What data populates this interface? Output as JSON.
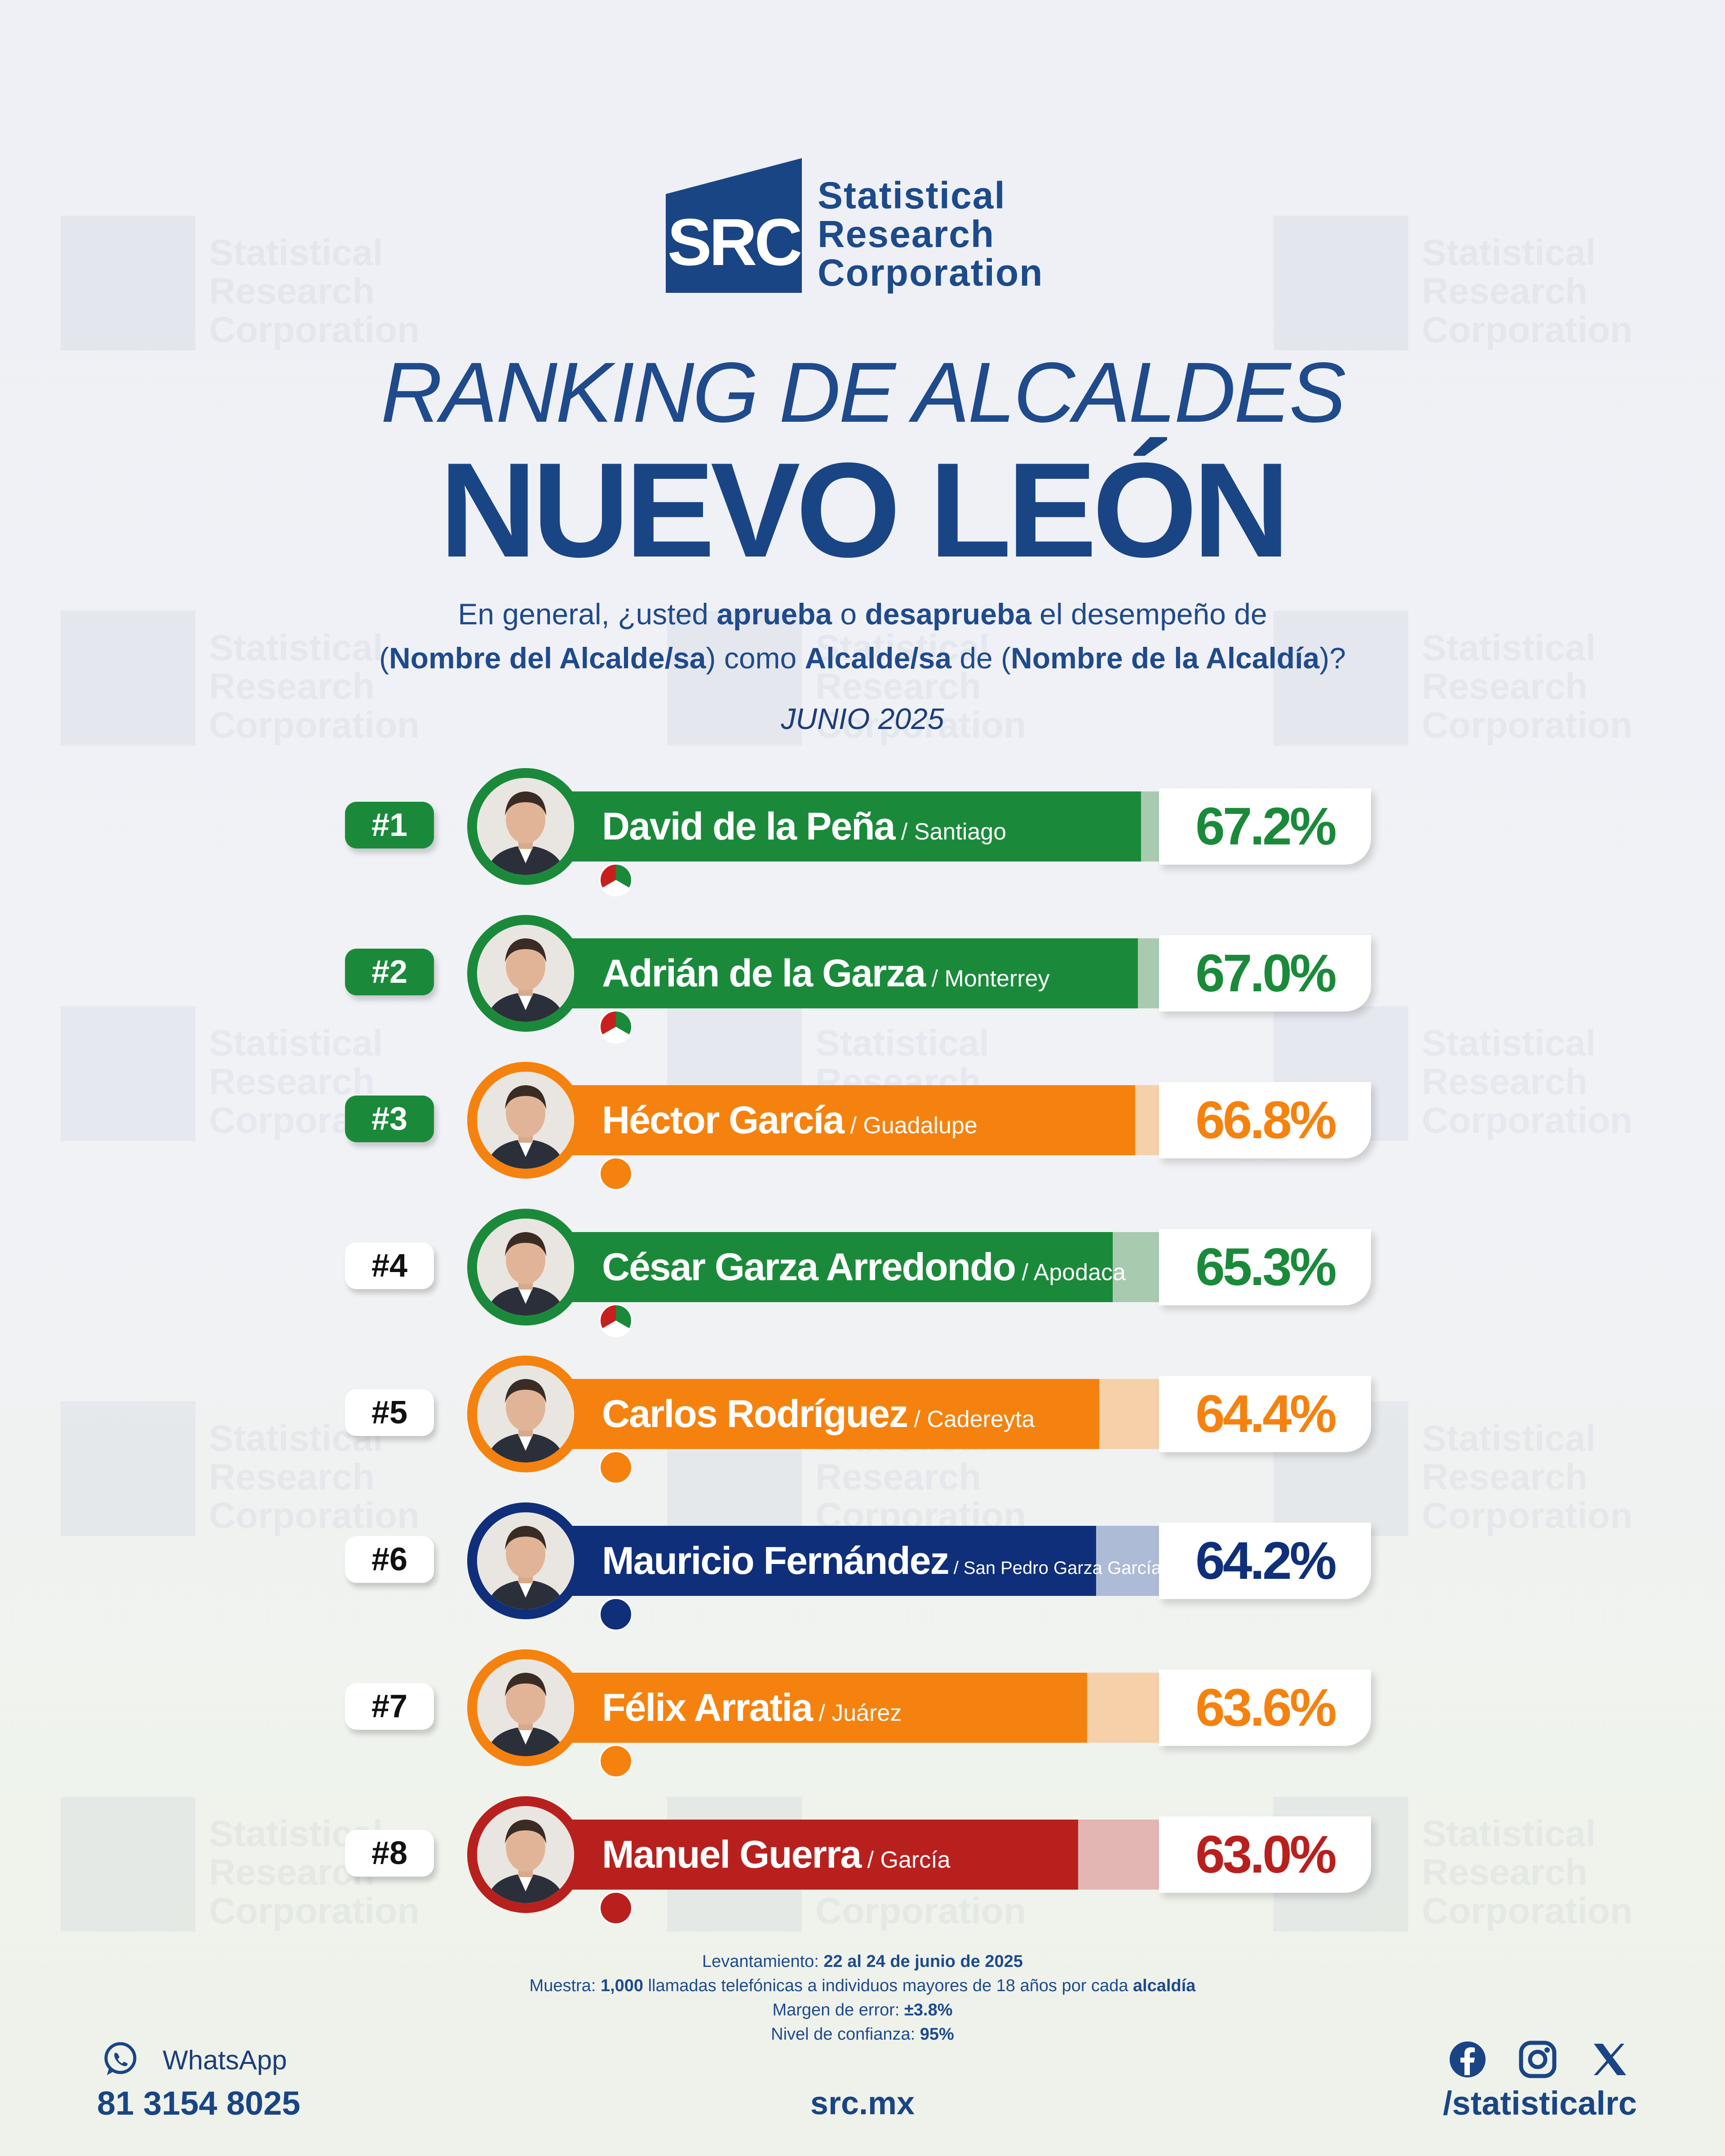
{
  "logo": {
    "mark": "SRC",
    "line1": "Statistical",
    "line2": "Research",
    "line3": "Corporation"
  },
  "title_line1": "RANKING DE ALCALDES",
  "title_line2": "NUEVO LEÓN",
  "question": {
    "p1": "En general, ¿usted ",
    "b1": "aprueba",
    "p2": " o ",
    "b2": "desaprueba",
    "p3": " el desempeño de",
    "p4": "(",
    "b3": "Nombre del Alcalde/sa",
    "p5": ") como ",
    "b4": "Alcalde/sa",
    "p6": " de (",
    "b5": "Nombre de la Alcaldía",
    "p7": ")?"
  },
  "period": "JUNIO 2025",
  "colors": {
    "green": "#1a8a3a",
    "orange": "#f5820f",
    "navy": "#0f2f7a",
    "red": "#b8201e",
    "brand": "#1a4585"
  },
  "chart_data": {
    "type": "bar",
    "title": "RANKING DE ALCALDES NUEVO LEÓN",
    "value_unit": "%",
    "categories": [
      "David de la Peña",
      "Adrián de la Garza",
      "Héctor García",
      "César Garza Arredondo",
      "Carlos Rodríguez",
      "Mauricio Fernández",
      "Félix Arratia",
      "Manuel Guerra"
    ],
    "values": [
      67.2,
      67.0,
      66.8,
      65.3,
      64.4,
      64.2,
      63.6,
      63.0
    ],
    "rows": [
      {
        "rank": "#1",
        "name": "David de la Peña",
        "city": " / Santiago",
        "value": 67.2,
        "label": "67.2%",
        "party": "PRI",
        "party_icon": "pri-logo-icon",
        "color": "#1a8a3a",
        "light": "#a8cbb0",
        "highlight": true
      },
      {
        "rank": "#2",
        "name": "Adrián de la Garza",
        "city": " / Monterrey",
        "value": 67.0,
        "label": "67.0%",
        "party": "PRI",
        "party_icon": "pri-logo-icon",
        "color": "#1a8a3a",
        "light": "#a8cbb0",
        "highlight": true
      },
      {
        "rank": "#3",
        "name": "Héctor García",
        "city": " / Guadalupe",
        "value": 66.8,
        "label": "66.8%",
        "party": "MC",
        "party_icon": "mc-logo-icon",
        "color": "#f5820f",
        "light": "#f6d0a8",
        "highlight": true
      },
      {
        "rank": "#4",
        "name": "César Garza Arredondo",
        "city": " / Apodaca",
        "value": 65.3,
        "label": "65.3%",
        "party": "PRI",
        "party_icon": "pri-logo-icon",
        "color": "#1a8a3a",
        "light": "#a8cbb0",
        "highlight": false
      },
      {
        "rank": "#5",
        "name": "Carlos Rodríguez",
        "city": " / Cadereyta",
        "value": 64.4,
        "label": "64.4%",
        "party": "MC",
        "party_icon": "mc-logo-icon",
        "color": "#f5820f",
        "light": "#f6d0a8",
        "highlight": false
      },
      {
        "rank": "#6",
        "name": "Mauricio Fernández",
        "city": " / San Pedro Garza García",
        "value": 64.2,
        "label": "64.2%",
        "party": "PAN",
        "party_icon": "pan-logo-icon",
        "color": "#0f2f7a",
        "light": "#aebbd6",
        "highlight": false
      },
      {
        "rank": "#7",
        "name": "Félix Arratia",
        "city": " / Juárez",
        "value": 63.6,
        "label": "63.6%",
        "party": "MC",
        "party_icon": "mc-logo-icon",
        "color": "#f5820f",
        "light": "#f6d0a8",
        "highlight": false
      },
      {
        "rank": "#8",
        "name": "Manuel Guerra",
        "city": " / García",
        "value": 63.0,
        "label": "63.0%",
        "party": "MORENA",
        "party_icon": "morena-logo-icon",
        "color": "#b8201e",
        "light": "#e2b6b2",
        "highlight": false
      }
    ]
  },
  "footer": {
    "l1_label": "Levantamiento: ",
    "l1_value": "22 al 24 de junio de 2025",
    "l2_label": "Muestra: ",
    "l2_value": "1,000",
    "l2_mid": " llamadas telefónicas a individuos mayores de 18 años por cada ",
    "l2_end": "alcaldía",
    "l3_label": "Margen de error: ",
    "l3_value": "±3.8%",
    "l4_label": "Nivel de confianza: ",
    "l4_value": "95%",
    "whatsapp_label": "WhatsApp",
    "whatsapp_number": "81 3154 8025",
    "website": "src.mx",
    "social_handle": "/statisticalrc",
    "social_icons": [
      "facebook-icon",
      "instagram-icon",
      "x-icon"
    ]
  }
}
